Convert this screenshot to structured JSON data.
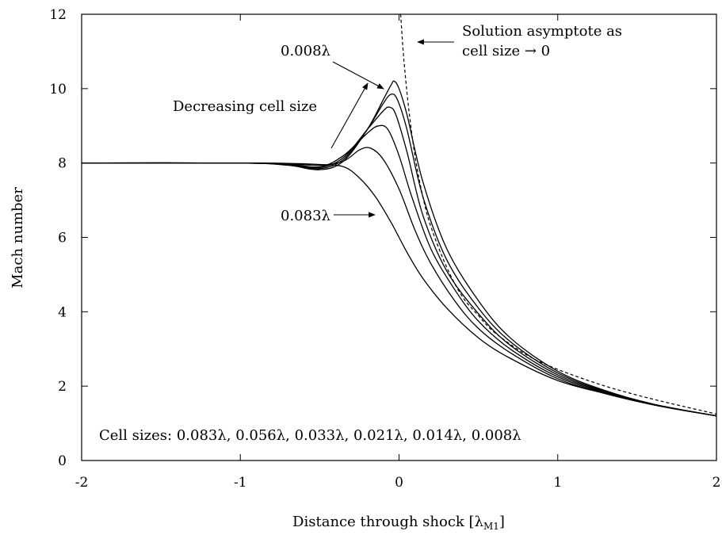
{
  "chart_data": {
    "type": "line",
    "xlabel": "Distance through shock [λ",
    "xlabel_sub": "M1",
    "xlabel_end": "]",
    "ylabel": "Mach number",
    "xlim": [
      -2,
      2
    ],
    "ylim": [
      0,
      12
    ],
    "x_ticks": [
      "-2",
      "-1",
      "0",
      "1",
      "2"
    ],
    "y_ticks": [
      "0",
      "2",
      "4",
      "6",
      "8",
      "10",
      "12"
    ],
    "grid": false,
    "series": [
      {
        "name": "0.083λ",
        "points": [
          [
            -2,
            8
          ],
          [
            -1,
            8
          ],
          [
            -0.7,
            7.99
          ],
          [
            -0.5,
            7.96
          ],
          [
            -0.35,
            7.9
          ],
          [
            -0.25,
            7.6
          ],
          [
            -0.15,
            7.1
          ],
          [
            -0.05,
            6.4
          ],
          [
            0.05,
            5.6
          ],
          [
            0.15,
            4.9
          ],
          [
            0.3,
            4.1
          ],
          [
            0.5,
            3.3
          ],
          [
            0.7,
            2.75
          ],
          [
            1,
            2.15
          ],
          [
            1.3,
            1.8
          ],
          [
            1.6,
            1.5
          ],
          [
            2,
            1.2
          ]
        ]
      },
      {
        "name": "0.056λ",
        "points": [
          [
            -2,
            8
          ],
          [
            -1,
            8
          ],
          [
            -0.7,
            7.98
          ],
          [
            -0.5,
            7.94
          ],
          [
            -0.35,
            8.05
          ],
          [
            -0.25,
            8.35
          ],
          [
            -0.18,
            8.4
          ],
          [
            -0.1,
            8.1
          ],
          [
            0,
            7.3
          ],
          [
            0.1,
            6.2
          ],
          [
            0.2,
            5.3
          ],
          [
            0.35,
            4.3
          ],
          [
            0.5,
            3.55
          ],
          [
            0.7,
            2.9
          ],
          [
            1,
            2.2
          ],
          [
            1.3,
            1.8
          ],
          [
            1.6,
            1.5
          ],
          [
            2,
            1.2
          ]
        ]
      },
      {
        "name": "0.033λ",
        "points": [
          [
            -2,
            8
          ],
          [
            -1,
            8
          ],
          [
            -0.7,
            7.97
          ],
          [
            -0.5,
            7.9
          ],
          [
            -0.35,
            8.2
          ],
          [
            -0.2,
            8.8
          ],
          [
            -0.13,
            9.0
          ],
          [
            -0.07,
            8.9
          ],
          [
            0,
            8.2
          ],
          [
            0.08,
            7.1
          ],
          [
            0.2,
            5.7
          ],
          [
            0.35,
            4.6
          ],
          [
            0.5,
            3.75
          ],
          [
            0.7,
            3.0
          ],
          [
            1,
            2.25
          ],
          [
            1.3,
            1.82
          ],
          [
            1.6,
            1.5
          ],
          [
            2,
            1.2
          ]
        ]
      },
      {
        "name": "0.021λ",
        "points": [
          [
            -2,
            8
          ],
          [
            -1,
            8
          ],
          [
            -0.7,
            7.96
          ],
          [
            -0.5,
            7.88
          ],
          [
            -0.35,
            8.15
          ],
          [
            -0.2,
            8.9
          ],
          [
            -0.1,
            9.4
          ],
          [
            -0.06,
            9.5
          ],
          [
            -0.02,
            9.3
          ],
          [
            0.05,
            8.3
          ],
          [
            0.15,
            6.6
          ],
          [
            0.3,
            5.1
          ],
          [
            0.5,
            3.95
          ],
          [
            0.7,
            3.1
          ],
          [
            1,
            2.3
          ],
          [
            1.3,
            1.84
          ],
          [
            1.6,
            1.5
          ],
          [
            2,
            1.2
          ]
        ]
      },
      {
        "name": "0.014λ",
        "points": [
          [
            -2,
            8
          ],
          [
            -1,
            8
          ],
          [
            -0.7,
            7.95
          ],
          [
            -0.5,
            7.85
          ],
          [
            -0.35,
            8.1
          ],
          [
            -0.2,
            8.9
          ],
          [
            -0.1,
            9.6
          ],
          [
            -0.05,
            9.85
          ],
          [
            -0.01,
            9.7
          ],
          [
            0.05,
            8.9
          ],
          [
            0.15,
            7.1
          ],
          [
            0.3,
            5.4
          ],
          [
            0.5,
            4.1
          ],
          [
            0.7,
            3.2
          ],
          [
            1,
            2.35
          ],
          [
            1.3,
            1.86
          ],
          [
            1.6,
            1.5
          ],
          [
            2,
            1.2
          ]
        ]
      },
      {
        "name": "0.008λ",
        "points": [
          [
            -2,
            8
          ],
          [
            -1,
            8
          ],
          [
            -0.7,
            7.94
          ],
          [
            -0.5,
            7.82
          ],
          [
            -0.35,
            8.05
          ],
          [
            -0.2,
            8.9
          ],
          [
            -0.1,
            9.7
          ],
          [
            -0.05,
            10.1
          ],
          [
            -0.03,
            10.2
          ],
          [
            0,
            10.0
          ],
          [
            0.05,
            9.3
          ],
          [
            0.15,
            7.5
          ],
          [
            0.3,
            5.7
          ],
          [
            0.5,
            4.3
          ],
          [
            0.7,
            3.3
          ],
          [
            1,
            2.4
          ],
          [
            1.3,
            1.88
          ],
          [
            1.6,
            1.52
          ],
          [
            2,
            1.2
          ]
        ]
      }
    ],
    "asymptote": {
      "points": [
        [
          0.01,
          12
        ],
        [
          0.03,
          10.8
        ],
        [
          0.06,
          9.5
        ],
        [
          0.1,
          8.2
        ],
        [
          0.15,
          7.1
        ],
        [
          0.2,
          6.3
        ],
        [
          0.3,
          5.2
        ],
        [
          0.4,
          4.4
        ],
        [
          0.5,
          3.9
        ],
        [
          0.6,
          3.45
        ],
        [
          0.8,
          2.85
        ],
        [
          1,
          2.45
        ],
        [
          1.3,
          2.0
        ],
        [
          1.6,
          1.65
        ],
        [
          2,
          1.25
        ]
      ]
    },
    "annotations": {
      "asymptote_line1": "Solution asymptote as",
      "asymptote_line2": "cell size → 0",
      "decreasing": "Decreasing cell size",
      "smallest": "0.008λ",
      "largest": "0.083λ",
      "cell_sizes": "Cell sizes: 0.083λ, 0.056λ, 0.033λ, 0.021λ, 0.014λ, 0.008λ"
    }
  }
}
